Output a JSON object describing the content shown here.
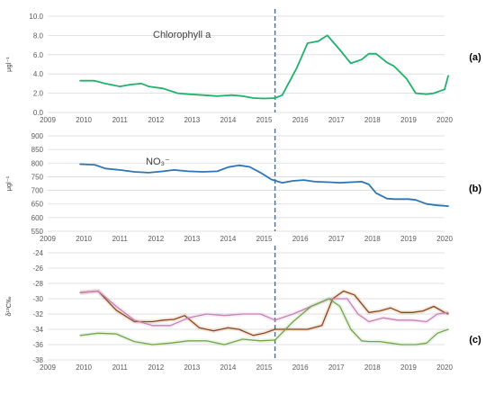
{
  "chart_data": [
    {
      "panel_label": "(a)",
      "type": "line",
      "annotation": "Chlorophyll a",
      "ylabel": "μgl⁻¹",
      "xlim": [
        2009,
        2020
      ],
      "ylim": [
        0,
        10
      ],
      "xticks": [
        2009,
        2010,
        2011,
        2012,
        2013,
        2014,
        2015,
        2016,
        2017,
        2018,
        2019,
        2020
      ],
      "yticks": [
        "0.0",
        "2.0",
        "4.0",
        "6.0",
        "8.0",
        "10.0"
      ],
      "vline_x": 2015.3,
      "series": [
        {
          "color": "#20b26c",
          "x": [
            2009.9,
            2010.3,
            2010.6,
            2011.0,
            2011.3,
            2011.6,
            2011.8,
            2012.2,
            2012.6,
            2012.9,
            2013.3,
            2013.7,
            2014.1,
            2014.4,
            2014.7,
            2015.0,
            2015.3,
            2015.5,
            2015.9,
            2016.2,
            2016.5,
            2016.75,
            2017.1,
            2017.4,
            2017.7,
            2017.9,
            2018.1,
            2018.4,
            2018.6,
            2018.95,
            2019.2,
            2019.5,
            2019.7,
            2020.0,
            2020.1
          ],
          "y": [
            3.3,
            3.3,
            3.0,
            2.7,
            2.9,
            3.0,
            2.7,
            2.5,
            2.0,
            1.9,
            1.8,
            1.7,
            1.8,
            1.7,
            1.5,
            1.45,
            1.5,
            1.8,
            4.6,
            7.2,
            7.4,
            8.0,
            6.5,
            5.1,
            5.5,
            6.1,
            6.1,
            5.2,
            4.8,
            3.5,
            2.0,
            1.9,
            2.0,
            2.4,
            3.8
          ]
        }
      ]
    },
    {
      "panel_label": "(b)",
      "type": "line",
      "annotation": "NO₃⁻",
      "ylabel": "μgl⁻¹",
      "xlim": [
        2009,
        2020
      ],
      "ylim": [
        550,
        900
      ],
      "xticks": [
        2009,
        2010,
        2011,
        2012,
        2013,
        2014,
        2015,
        2016,
        2017,
        2018,
        2019,
        2020
      ],
      "yticks": [
        "550",
        "600",
        "650",
        "700",
        "750",
        "800",
        "850",
        "900"
      ],
      "vline_x": 2015.3,
      "series": [
        {
          "color": "#2e75b6",
          "x": [
            2009.9,
            2010.3,
            2010.6,
            2011.0,
            2011.4,
            2011.8,
            2012.2,
            2012.5,
            2012.9,
            2013.3,
            2013.7,
            2014.0,
            2014.3,
            2014.6,
            2014.9,
            2015.2,
            2015.5,
            2015.8,
            2016.1,
            2016.4,
            2016.8,
            2017.1,
            2017.4,
            2017.7,
            2017.9,
            2018.1,
            2018.4,
            2018.6,
            2019.0,
            2019.2,
            2019.5,
            2019.8,
            2020.1
          ],
          "y": [
            796,
            794,
            780,
            775,
            768,
            765,
            770,
            775,
            770,
            768,
            770,
            785,
            792,
            786,
            765,
            740,
            728,
            735,
            738,
            732,
            730,
            728,
            730,
            732,
            722,
            690,
            670,
            668,
            668,
            665,
            650,
            645,
            642
          ]
        }
      ]
    },
    {
      "panel_label": "(c)",
      "type": "line",
      "annotation": "",
      "ylabel": "δ¹³C‰",
      "xlim": [
        2009,
        2020
      ],
      "ylim": [
        -38,
        -24
      ],
      "xticks": [
        2009,
        2010,
        2011,
        2012,
        2013,
        2014,
        2015,
        2016,
        2017,
        2018,
        2019,
        2020
      ],
      "yticks": [
        "-38",
        "-36",
        "-34",
        "-32",
        "-30",
        "-28",
        "-26",
        "-24"
      ],
      "vline_x": 2015.3,
      "series": [
        {
          "color": "#8b4513",
          "x": [
            2009.9,
            2010.4,
            2010.9,
            2011.4,
            2011.9,
            2012.2,
            2012.5,
            2012.8,
            2013.2,
            2013.6,
            2014.0,
            2014.3,
            2014.7,
            2015.0,
            2015.3,
            2015.8,
            2016.2,
            2016.6,
            2016.9,
            2017.2,
            2017.5,
            2017.9,
            2018.2,
            2018.5,
            2018.8,
            2019.1,
            2019.4,
            2019.7,
            2020.0,
            2020.1
          ],
          "y": [
            -29.2,
            -29.0,
            -31.5,
            -33.0,
            -33.0,
            -32.8,
            -32.7,
            -32.2,
            -33.8,
            -34.2,
            -33.8,
            -34.0,
            -34.8,
            -34.5,
            -34.0,
            -34.0,
            -34.0,
            -33.5,
            -30.0,
            -29.0,
            -29.5,
            -31.8,
            -31.6,
            -31.2,
            -31.8,
            -31.8,
            -31.6,
            -31.0,
            -31.8,
            -32.0
          ]
        },
        {
          "color": "#c97fb5",
          "x": [
            2009.9,
            2010.4,
            2010.9,
            2011.4,
            2011.9,
            2012.4,
            2012.9,
            2013.4,
            2013.9,
            2014.4,
            2014.9,
            2015.3,
            2015.8,
            2016.3,
            2016.8,
            2017.3,
            2017.6,
            2017.9,
            2018.3,
            2018.7,
            2019.1,
            2019.5,
            2019.8,
            2020.1
          ],
          "y": [
            -29.2,
            -29.0,
            -31.0,
            -32.8,
            -33.5,
            -33.5,
            -32.5,
            -32.0,
            -32.2,
            -32.0,
            -32.0,
            -32.8,
            -32.0,
            -31.0,
            -30.0,
            -30.0,
            -32.0,
            -33.0,
            -32.5,
            -32.8,
            -32.8,
            -33.0,
            -32.0,
            -31.8
          ]
        },
        {
          "color": "#70a64a",
          "x": [
            2009.9,
            2010.4,
            2010.9,
            2011.4,
            2011.9,
            2012.4,
            2012.9,
            2013.4,
            2013.9,
            2014.4,
            2014.9,
            2015.3,
            2015.8,
            2016.3,
            2016.8,
            2017.1,
            2017.4,
            2017.7,
            2017.9,
            2018.2,
            2018.5,
            2018.8,
            2019.2,
            2019.5,
            2019.8,
            2020.1
          ],
          "y": [
            -34.8,
            -34.5,
            -34.6,
            -35.6,
            -36.0,
            -35.8,
            -35.5,
            -35.5,
            -36.0,
            -35.3,
            -35.5,
            -35.4,
            -33.0,
            -31.0,
            -30.0,
            -31.0,
            -34.0,
            -35.5,
            -35.6,
            -35.6,
            -35.8,
            -36.0,
            -36.0,
            -35.8,
            -34.5,
            -34.0
          ]
        }
      ]
    }
  ]
}
